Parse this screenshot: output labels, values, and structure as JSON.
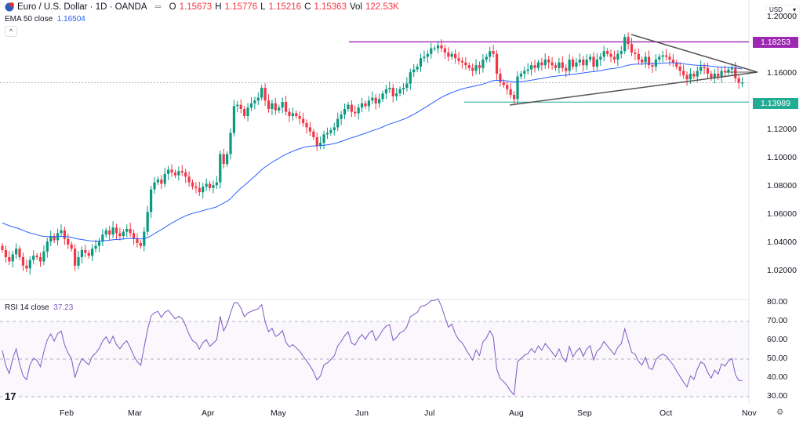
{
  "header": {
    "symbol": "Euro / U.S. Dollar · 1D · OANDA",
    "o_label": "O",
    "o": "1.15673",
    "h_label": "H",
    "h": "1.15776",
    "l_label": "L",
    "l": "1.15216",
    "c_label": "C",
    "c": "1.15363",
    "vol_label": "Vol",
    "vol": "122.53K"
  },
  "ema": {
    "label": "EMA 50 close",
    "value": "1.16504"
  },
  "rsi": {
    "label": "RSI 14 close",
    "value": "37.23"
  },
  "currency": "USD",
  "colors": {
    "up": "#089981",
    "down": "#f23645",
    "ema": "#2962ff",
    "rsi": "#7e57c2",
    "resistance": "#9c27b0",
    "support": "#22ab94"
  },
  "chart_data": {
    "type": "candlestick",
    "price_axis": {
      "range": [
        1.01,
        1.205
      ],
      "ticks": [
        "1.20000",
        "1.16000",
        "1.12000",
        "1.10000",
        "1.08000",
        "1.06000",
        "1.04000",
        "1.02000"
      ]
    },
    "rsi_axis": {
      "range": [
        26,
        82
      ],
      "ticks": [
        "80.00",
        "70.00",
        "60.00",
        "50.00",
        "40.00",
        "30.00"
      ]
    },
    "months": [
      "Feb",
      "Mar",
      "Apr",
      "May",
      "Jun",
      "Jul",
      "Aug",
      "Sep",
      "Oct",
      "Nov"
    ],
    "levels": {
      "resistance": "1.18253",
      "support": "1.13989"
    },
    "closes": [
      1.035,
      1.03,
      1.027,
      1.032,
      1.036,
      1.03,
      1.024,
      1.022,
      1.028,
      1.031,
      1.03,
      1.027,
      1.034,
      1.041,
      1.045,
      1.042,
      1.047,
      1.049,
      1.043,
      1.039,
      1.036,
      1.024,
      1.03,
      1.035,
      1.033,
      1.031,
      1.036,
      1.038,
      1.041,
      1.046,
      1.049,
      1.046,
      1.051,
      1.047,
      1.045,
      1.048,
      1.05,
      1.047,
      1.043,
      1.04,
      1.038,
      1.048,
      1.062,
      1.078,
      1.083,
      1.085,
      1.082,
      1.089,
      1.092,
      1.09,
      1.088,
      1.091,
      1.09,
      1.087,
      1.083,
      1.08,
      1.079,
      1.076,
      1.08,
      1.082,
      1.079,
      1.081,
      1.083,
      1.103,
      1.096,
      1.103,
      1.118,
      1.137,
      1.138,
      1.135,
      1.13,
      1.136,
      1.139,
      1.141,
      1.143,
      1.15,
      1.141,
      1.135,
      1.139,
      1.134,
      1.136,
      1.14,
      1.133,
      1.13,
      1.132,
      1.13,
      1.128,
      1.125,
      1.122,
      1.119,
      1.115,
      1.109,
      1.111,
      1.117,
      1.118,
      1.12,
      1.122,
      1.128,
      1.131,
      1.135,
      1.138,
      1.133,
      1.132,
      1.136,
      1.139,
      1.137,
      1.141,
      1.143,
      1.139,
      1.142,
      1.146,
      1.149,
      1.15,
      1.144,
      1.146,
      1.149,
      1.15,
      1.153,
      1.161,
      1.163,
      1.165,
      1.171,
      1.172,
      1.174,
      1.178,
      1.178,
      1.18,
      1.178,
      1.175,
      1.172,
      1.174,
      1.171,
      1.169,
      1.168,
      1.166,
      1.164,
      1.162,
      1.166,
      1.164,
      1.17,
      1.172,
      1.176,
      1.174,
      1.16,
      1.154,
      1.152,
      1.149,
      1.145,
      1.142,
      1.158,
      1.16,
      1.162,
      1.163,
      1.166,
      1.164,
      1.168,
      1.166,
      1.17,
      1.168,
      1.166,
      1.164,
      1.168,
      1.164,
      1.162,
      1.17,
      1.165,
      1.168,
      1.17,
      1.166,
      1.17,
      1.172,
      1.165,
      1.17,
      1.172,
      1.176,
      1.174,
      1.172,
      1.17,
      1.174,
      1.176,
      1.186,
      1.181,
      1.175,
      1.174,
      1.17,
      1.168,
      1.172,
      1.166,
      1.165,
      1.17,
      1.172,
      1.173,
      1.172,
      1.17,
      1.168,
      1.165,
      1.162,
      1.159,
      1.156,
      1.16,
      1.158,
      1.162,
      1.165,
      1.164,
      1.16,
      1.157,
      1.16,
      1.158,
      1.162,
      1.161,
      1.163,
      1.164,
      1.1567,
      1.1536,
      1.15363
    ]
  }
}
